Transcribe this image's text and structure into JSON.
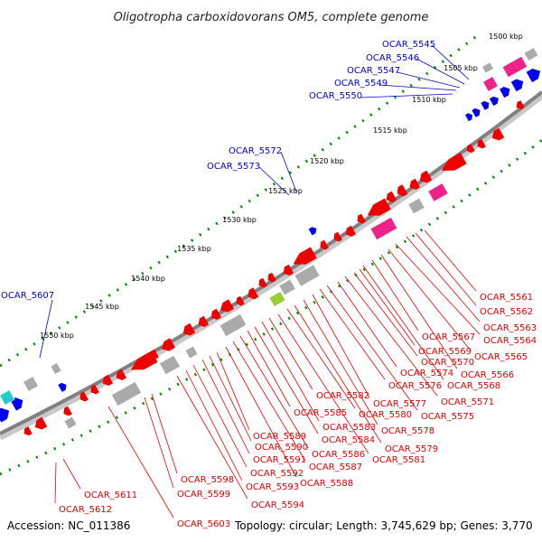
{
  "title": "Oligotropha carboxidovorans OM5, complete genome",
  "footer": {
    "accession": "Accession: NC_011386",
    "summary": "Topology: circular; Length: 3,745,629 bp; Genes: 3,770"
  },
  "colors": {
    "forward_strand": "#0000ee",
    "reverse_strand": "#ee0000",
    "backbone": "#808080",
    "tick": "#008800",
    "rna": "#ee2288",
    "other_feature": "#aaaaaa",
    "highlight_green": "#99cc33",
    "highlight_cyan": "#22cccc"
  },
  "ticks": [
    "1500 kbp",
    "1505 kbp",
    "1510 kbp",
    "1515 kbp",
    "1520 kbp",
    "1525 kbp",
    "1530 kbp",
    "1535 kbp",
    "1540 kbp",
    "1545 kbp",
    "1550 kbp"
  ],
  "forward_labels": [
    "OCAR_5545",
    "OCAR_5546",
    "OCAR_5547",
    "OCAR_5549",
    "OCAR_5550",
    "OCAR_5572",
    "OCAR_5573",
    "OCAR_5607"
  ],
  "reverse_labels": [
    "OCAR_5561",
    "OCAR_5562",
    "OCAR_5563",
    "OCAR_5564",
    "OCAR_5565",
    "OCAR_5566",
    "OCAR_5567",
    "OCAR_5568",
    "OCAR_5569",
    "OCAR_5570",
    "OCAR_5571",
    "OCAR_5574",
    "OCAR_5575",
    "OCAR_5576",
    "OCAR_5577",
    "OCAR_5578",
    "OCAR_5579",
    "OCAR_5580",
    "OCAR_5581",
    "OCAR_5582",
    "OCAR_5583",
    "OCAR_5584",
    "OCAR_5585",
    "OCAR_5586",
    "OCAR_5587",
    "OCAR_5588",
    "OCAR_5589",
    "OCAR_5590",
    "OCAR_5591",
    "OCAR_5592",
    "OCAR_5593",
    "OCAR_5594",
    "OCAR_5598",
    "OCAR_5599",
    "OCAR_5603",
    "OCAR_5611",
    "OCAR_5612"
  ]
}
